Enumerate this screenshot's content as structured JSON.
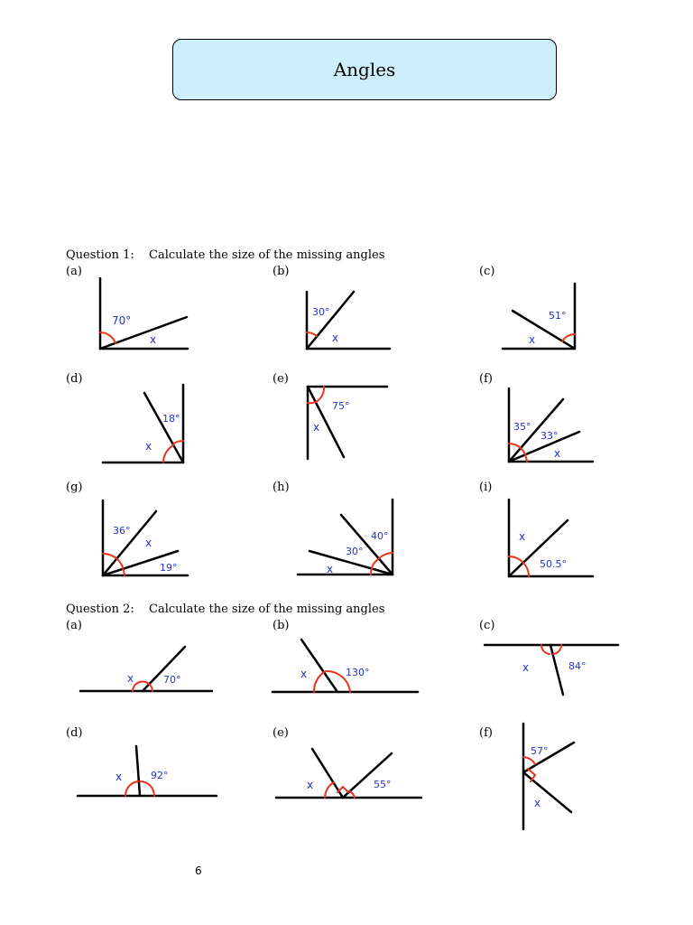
{
  "title": "Angles",
  "questions": [
    {
      "number": "Question 1:",
      "instruction": "Calculate the size of the missing angles",
      "parts": [
        {
          "label": "(a)",
          "angles": [
            "70°"
          ],
          "unknown": "x"
        },
        {
          "label": "(b)",
          "angles": [
            "30°"
          ],
          "unknown": "x"
        },
        {
          "label": "(c)",
          "angles": [
            "51°"
          ],
          "unknown": "x"
        },
        {
          "label": "(d)",
          "angles": [
            "18°"
          ],
          "unknown": "x"
        },
        {
          "label": "(e)",
          "angles": [
            "75°"
          ],
          "unknown": "x"
        },
        {
          "label": "(f)",
          "angles": [
            "35°",
            "33°"
          ],
          "unknown": "x"
        },
        {
          "label": "(g)",
          "angles": [
            "36°",
            "19°"
          ],
          "unknown": "x"
        },
        {
          "label": "(h)",
          "angles": [
            "40°",
            "30°"
          ],
          "unknown": "x"
        },
        {
          "label": "(i)",
          "angles": [
            "50.5°"
          ],
          "unknown": "x"
        }
      ]
    },
    {
      "number": "Question 2:",
      "instruction": "Calculate the size of the missing angles",
      "parts": [
        {
          "label": "(a)",
          "angles": [
            "70°"
          ],
          "unknown": "x"
        },
        {
          "label": "(b)",
          "angles": [
            "130°"
          ],
          "unknown": "x"
        },
        {
          "label": "(c)",
          "angles": [
            "84°"
          ],
          "unknown": "x"
        },
        {
          "label": "(d)",
          "angles": [
            "92°"
          ],
          "unknown": "x"
        },
        {
          "label": "(e)",
          "angles": [
            "55°"
          ],
          "unknown": "x"
        },
        {
          "label": "(f)",
          "angles": [
            "57°"
          ],
          "unknown": "x"
        }
      ]
    }
  ],
  "page_number": "6",
  "colors": {
    "title_fill": "#cdeefb",
    "line": "#000000",
    "arc": "#e8341c",
    "label": "#2233cc"
  }
}
